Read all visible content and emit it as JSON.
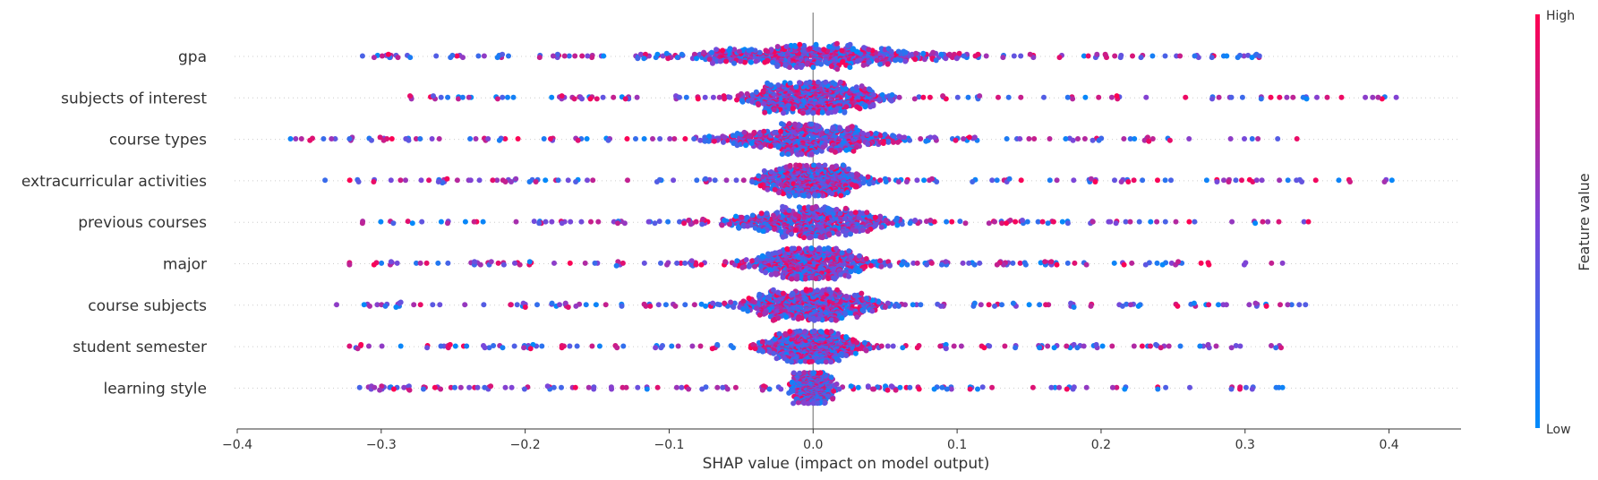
{
  "chart_data": {
    "type": "scatter",
    "subtype": "shap-beeswarm",
    "title": "",
    "xlabel": "SHAP value (impact on model output)",
    "xlim": [
      -0.4,
      0.45
    ],
    "xticks": [
      -0.4,
      -0.3,
      -0.2,
      -0.1,
      0.0,
      0.1,
      0.2,
      0.3,
      0.4
    ],
    "xtick_labels": [
      "−0.4",
      "−0.3",
      "−0.2",
      "−0.1",
      "0.0",
      "0.1",
      "0.2",
      "0.3",
      "0.4"
    ],
    "features": [
      "gpa",
      "subjects of interest",
      "course types",
      "extracurricular activities",
      "previous courses",
      "major",
      "course subjects",
      "student semester",
      "learning style"
    ],
    "series": [
      {
        "feature": "gpa",
        "min": -0.313,
        "max": 0.31,
        "core_width": 0.085
      },
      {
        "feature": "subjects of interest",
        "min": -0.28,
        "max": 0.405,
        "core_width": 0.045
      },
      {
        "feature": "course types",
        "min": -0.363,
        "max": 0.336,
        "core_width": 0.055
      },
      {
        "feature": "extracurricular activities",
        "min": -0.339,
        "max": 0.402,
        "core_width": 0.035
      },
      {
        "feature": "previous courses",
        "min": -0.313,
        "max": 0.344,
        "core_width": 0.05
      },
      {
        "feature": "major",
        "min": -0.322,
        "max": 0.326,
        "core_width": 0.04
      },
      {
        "feature": "course subjects",
        "min": -0.331,
        "max": 0.342,
        "core_width": 0.045
      },
      {
        "feature": "student semester",
        "min": -0.322,
        "max": 0.325,
        "core_width": 0.03
      },
      {
        "feature": "learning style",
        "min": -0.315,
        "max": 0.326,
        "core_width": 0.012
      }
    ],
    "colorbar": {
      "title": "Feature value",
      "high_label": "High",
      "low_label": "Low",
      "high_color": "#ff0051",
      "low_color": "#008bfb"
    },
    "zero_line": true,
    "grid": false
  }
}
